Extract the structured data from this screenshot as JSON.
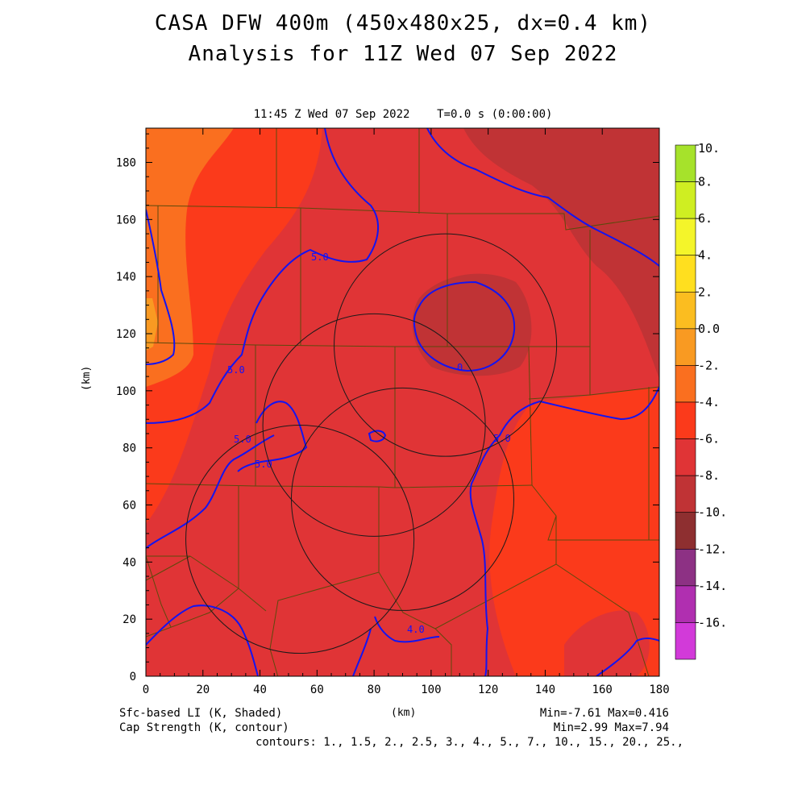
{
  "header": {
    "title_line1": "CASA DFW 400m (450x480x25, dx=0.4 km)",
    "title_line2": "Analysis for 11Z Wed 07 Sep 2022",
    "subtitle": "11:45 Z Wed 07 Sep 2022    T=0.0 s (0:00:00)"
  },
  "footer": {
    "left_line1": "Sfc-based LI (K, Shaded)",
    "left_line2": "Cap Strength (K, contour)",
    "right_line1": "Min=-7.61 Max=0.416",
    "right_line2": "Min=2.99 Max=7.94",
    "right_line3": "contours: 1., 1.5, 2., 2.5, 3., 4., 5., 7., 10., 15., 20., 25.,"
  },
  "chart_data": {
    "type": "heatmap",
    "xlabel": "(km)",
    "ylabel": "(km)",
    "xlim": [
      0,
      180
    ],
    "ylim": [
      0,
      192
    ],
    "x_ticks": [
      0,
      20,
      40,
      60,
      80,
      100,
      120,
      140,
      160,
      180
    ],
    "y_ticks": [
      0,
      20,
      40,
      60,
      80,
      100,
      120,
      140,
      160,
      180
    ],
    "colorbar": {
      "labels": [
        "10.",
        "8.",
        "6.",
        "4.",
        "2.",
        "0.0",
        "-2.",
        "-4.",
        "-6.",
        "-8.",
        "-10.",
        "-12.",
        "-14.",
        "-16."
      ],
      "levels": [
        10,
        8,
        6,
        4,
        2,
        0,
        -2,
        -4,
        -6,
        -8,
        -10,
        -12,
        -14,
        -16
      ],
      "colors": [
        "#a6e22b",
        "#cfee22",
        "#f4f52a",
        "#ffdf1f",
        "#fbbd20",
        "#f99a22",
        "#fa6f1f",
        "#fb3a1b",
        "#e03436",
        "#c03335",
        "#8e2f30",
        "#8d3184",
        "#b02fb0",
        "#d23ad9"
      ]
    },
    "shaded_variable": {
      "name": "Sfc-based LI (K, Shaded)",
      "min": -7.61,
      "max": 0.416
    },
    "contour_variable": {
      "name": "Cap Strength (K, contour)",
      "min": 2.99,
      "max": 7.94,
      "contour_levels": [
        1,
        1.5,
        2,
        2.5,
        3,
        4,
        5,
        7,
        10,
        15,
        20,
        25
      ],
      "visible_labels": [
        "5.0",
        "5.0",
        "5.0",
        "5.0",
        "5.0",
        "4.0",
        "0"
      ]
    },
    "radar_rings": [
      {
        "center": [
          105,
          116
        ],
        "radius": 39
      },
      {
        "center": [
          80,
          88
        ],
        "radius": 39
      },
      {
        "center": [
          90,
          62
        ],
        "radius": 39
      },
      {
        "center": [
          54,
          48
        ],
        "radius": 40
      }
    ]
  }
}
